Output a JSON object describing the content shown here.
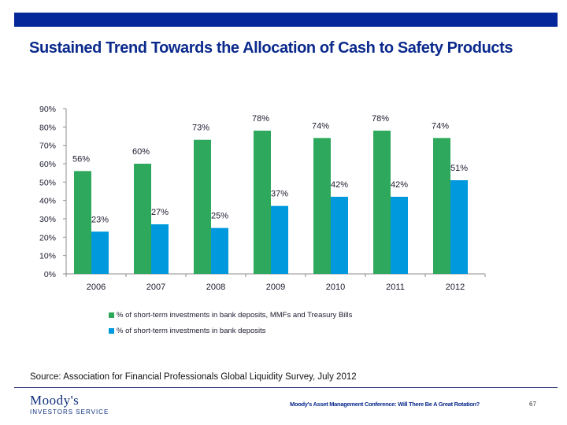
{
  "slide": {
    "title": "Sustained Trend Towards the Allocation of Cash to Safety Products",
    "source": "Source:  Association for Financial Professionals Global Liquidity Survey,  July 2012",
    "footer_text": "Moody's Asset Management Conference: Will There Be A Great Rotation?",
    "page_number": "67",
    "logo_main": "Moody's",
    "logo_sub": "INVESTORS SERVICE",
    "colors": {
      "header_bar": "#04279a",
      "title": "#0b2a8c",
      "series1": "#2ea85c",
      "series2": "#0099dd"
    }
  },
  "chart_data": {
    "type": "bar",
    "title": "",
    "xlabel": "",
    "ylabel": "",
    "categories": [
      "2006",
      "2007",
      "2008",
      "2009",
      "2010",
      "2011",
      "2012"
    ],
    "series": [
      {
        "name": "% of short-term investments in bank deposits, MMFs and Treasury Bills",
        "color": "#2ea85c",
        "values": [
          56,
          60,
          73,
          78,
          74,
          78,
          74
        ],
        "labels": [
          "56%",
          "60%",
          "73%",
          "78%",
          "74%",
          "78%",
          "74%"
        ]
      },
      {
        "name": "% of short-term investments in bank deposits",
        "color": "#0099dd",
        "values": [
          23,
          27,
          25,
          37,
          42,
          42,
          51
        ],
        "labels": [
          "23%",
          "27%",
          "25%",
          "37%",
          "42%",
          "42%",
          "51%"
        ]
      }
    ],
    "ylim": [
      0,
      90
    ],
    "yticks": [
      0,
      10,
      20,
      30,
      40,
      50,
      60,
      70,
      80,
      90
    ],
    "ytick_labels": [
      "0%",
      "10%",
      "20%",
      "30%",
      "40%",
      "50%",
      "60%",
      "70%",
      "80%",
      "90%"
    ],
    "grid": false,
    "legend_position": "bottom"
  }
}
